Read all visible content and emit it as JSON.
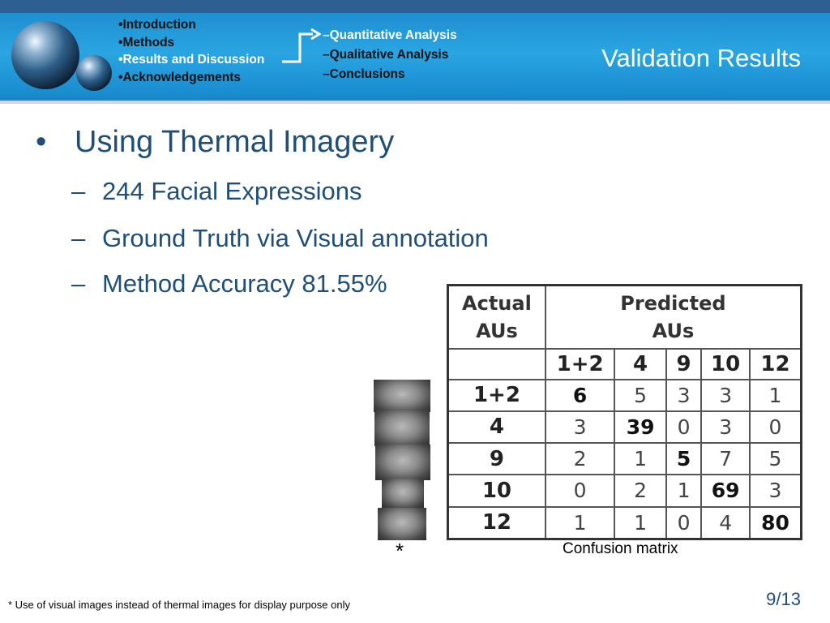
{
  "header": {
    "nav": [
      "Introduction",
      "Methods",
      "Results and Discussion",
      "Acknowledgements"
    ],
    "subnav": [
      "Quantitative Analysis",
      "Qualitative Analysis",
      "Conclusions"
    ],
    "bullet_char": "•",
    "dash_char": "–",
    "title": "Validation Results",
    "colors": {
      "banner": "#1e8fd0",
      "topbar": "#2d5f93",
      "text_blue": "#1f4e79"
    }
  },
  "content": {
    "bullet": "Using Thermal Imagery",
    "sub_items": [
      "244 Facial Expressions",
      "Ground Truth via Visual annotation",
      "Method Accuracy 81.55%"
    ]
  },
  "matrix": {
    "actual_header": [
      "Actual",
      "AUs"
    ],
    "predicted_header": [
      "Predicted",
      "AUs"
    ],
    "columns": [
      "1+2",
      "4",
      "9",
      "10",
      "12"
    ],
    "rows": [
      {
        "label": "1+2",
        "values": [
          "6",
          "5",
          "3",
          "3",
          "1"
        ]
      },
      {
        "label": "4",
        "values": [
          "3",
          "39",
          "0",
          "3",
          "0"
        ]
      },
      {
        "label": "9",
        "values": [
          "2",
          "1",
          "5",
          "7",
          "5"
        ]
      },
      {
        "label": "10",
        "values": [
          "0",
          "2",
          "1",
          "69",
          "3"
        ]
      },
      {
        "label": "12",
        "values": [
          "1",
          "1",
          "0",
          "4",
          "80"
        ]
      }
    ]
  },
  "images": {
    "asterisk": "*",
    "face_count": 5
  },
  "caption": "Confusion matrix",
  "footnote": "* Use of visual images instead of thermal images for display purpose only",
  "page": "9/13"
}
